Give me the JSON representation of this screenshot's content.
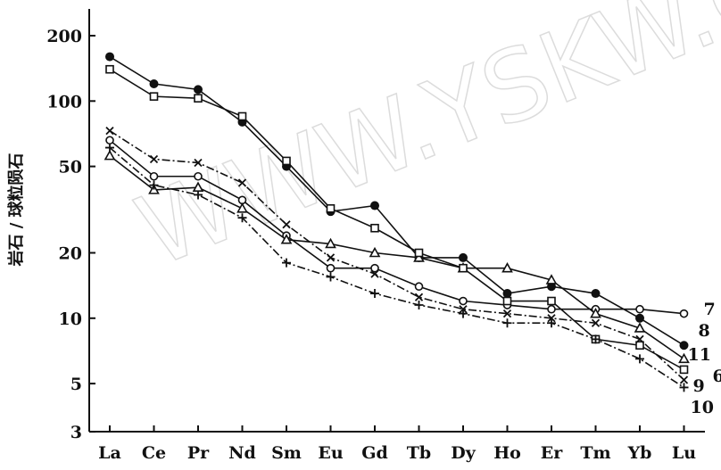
{
  "chart_data": {
    "type": "line",
    "title": "",
    "ylabel": "岩石 / 球粒陨石",
    "xlabel": "",
    "y_scale": "log",
    "ylim": [
      3,
      220
    ],
    "y_ticks": [
      3,
      5,
      10,
      20,
      50,
      100,
      200
    ],
    "y_tick_labels": [
      "3",
      "5",
      "10",
      "20",
      "50",
      "100",
      "200"
    ],
    "categories": [
      "La",
      "Ce",
      "Pr",
      "Nd",
      "Sm",
      "Eu",
      "Gd",
      "Tb",
      "Dy",
      "Ho",
      "Er",
      "Tm",
      "Yb",
      "Lu"
    ],
    "grid": false,
    "series": [
      {
        "name": "7",
        "marker": "open-circle",
        "dash": "solid",
        "values": [
          66,
          45,
          45,
          35,
          24,
          17,
          17,
          14,
          12,
          11.5,
          11,
          11,
          11,
          10.5
        ]
      },
      {
        "name": "8",
        "marker": "filled-circle",
        "dash": "solid",
        "values": [
          160,
          120,
          113,
          80,
          50,
          31,
          33,
          19,
          19,
          13,
          14,
          13,
          10,
          7.5
        ]
      },
      {
        "name": "11",
        "marker": "open-triangle",
        "dash": "solid",
        "values": [
          56,
          39,
          40,
          32,
          23,
          22,
          20,
          19,
          17,
          17,
          15,
          10.5,
          9,
          6.5
        ]
      },
      {
        "name": "6",
        "marker": "open-square",
        "dash": "solid",
        "values": [
          140,
          105,
          103,
          85,
          53,
          32,
          26,
          20,
          17,
          12,
          12,
          8,
          7.5,
          5.8
        ]
      },
      {
        "name": "9",
        "marker": "cross",
        "dash": "dashdot",
        "values": [
          73,
          54,
          52,
          42,
          27,
          19,
          16,
          12.5,
          11,
          10.5,
          10,
          9.5,
          8,
          5.2
        ]
      },
      {
        "name": "10",
        "marker": "plus",
        "dash": "dashdot",
        "values": [
          61,
          41,
          37,
          29,
          18,
          15.5,
          13,
          11.5,
          10.5,
          9.5,
          9.5,
          8,
          6.5,
          4.8
        ]
      }
    ]
  },
  "watermark": {
    "text": "WWW.YSKW.COM"
  }
}
